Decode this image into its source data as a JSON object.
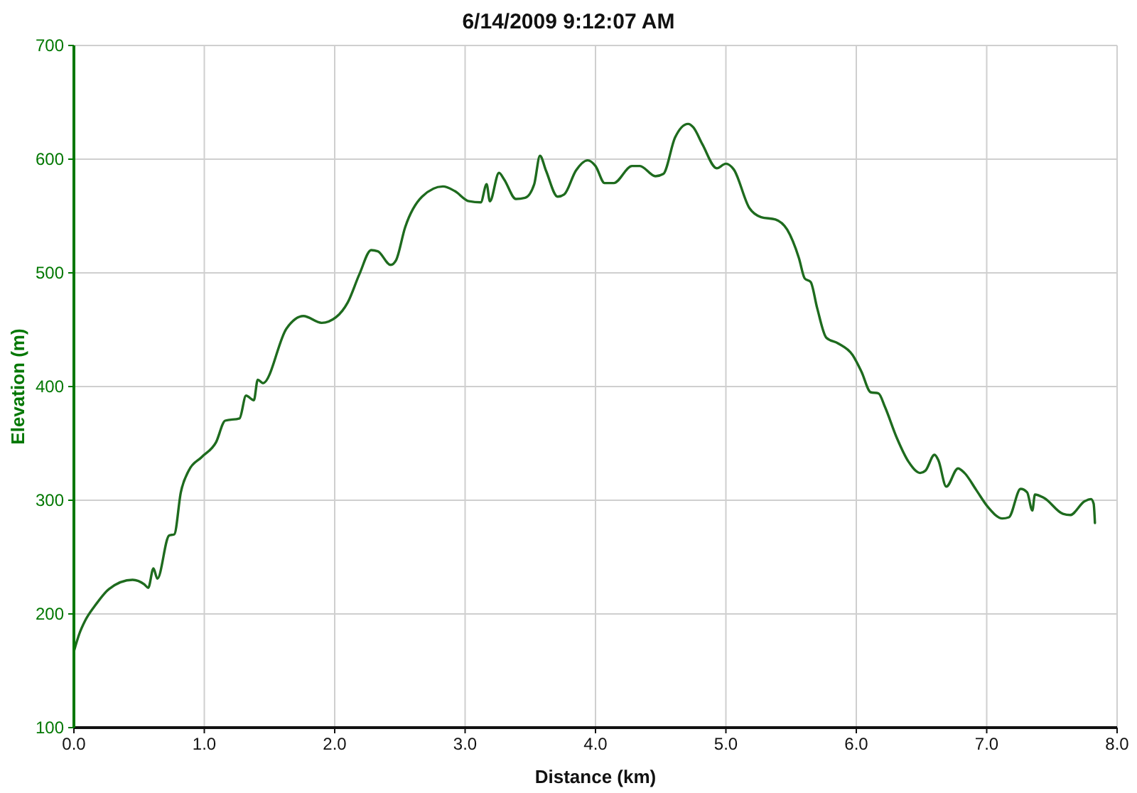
{
  "chart_data": {
    "type": "line",
    "title": "6/14/2009 9:12:07 AM",
    "xlabel": "Distance (km)",
    "ylabel": "Elevation (m)",
    "x": [
      0,
      0.04,
      0.086,
      0.16,
      0.27,
      0.45,
      0.54,
      0.57,
      0.61,
      0.64,
      0.73,
      0.77,
      0.82,
      0.88,
      0.98,
      1.09,
      1.16,
      1.27,
      1.32,
      1.38,
      1.41,
      1.45,
      1.63,
      1.76,
      1.9,
      2.01,
      2.1,
      2.19,
      2.28,
      2.33,
      2.43,
      2.47,
      2.54,
      2.67,
      2.83,
      2.92,
      3.03,
      3.12,
      3.165,
      3.19,
      3.26,
      3.3,
      3.39,
      3.46,
      3.53,
      3.574,
      3.62,
      3.71,
      3.76,
      3.85,
      3.94,
      4,
      4.07,
      4.14,
      4.28,
      4.34,
      4.46,
      4.52,
      4.61,
      4.71,
      4.75,
      4.82,
      4.93,
      5,
      5.06,
      5.18,
      5.27,
      5.38,
      5.47,
      5.56,
      5.605,
      5.65,
      5.7,
      5.77,
      5.86,
      5.97,
      6.04,
      6.11,
      6.17,
      6.22,
      6.31,
      6.4,
      6.49,
      6.53,
      6.6,
      6.63,
      6.69,
      6.78,
      6.83,
      6.92,
      7.01,
      7.12,
      7.17,
      7.26,
      7.31,
      7.35,
      7.37,
      7.44,
      7.585,
      7.64,
      7.75,
      7.8,
      7.82,
      7.83
    ],
    "series": [
      {
        "color": "#1e6b1e",
        "values": [
          167,
          182,
          194,
          207,
          222,
          230,
          226,
          223,
          240,
          231,
          269,
          270,
          307,
          326,
          338,
          351,
          370,
          372,
          392,
          388,
          406,
          403,
          451,
          462,
          456,
          461,
          474,
          499,
          520,
          519,
          507,
          511,
          540,
          567,
          576,
          572,
          563,
          562,
          578,
          563,
          588,
          582,
          565,
          566,
          578,
          603,
          590,
          567,
          569,
          590,
          599,
          594,
          579,
          579,
          594,
          594,
          585,
          587,
          619,
          631,
          628,
          613,
          592,
          596,
          591,
          557,
          549,
          547,
          538,
          513,
          495,
          492,
          469,
          443,
          438,
          428,
          413,
          395,
          394,
          382,
          355,
          334,
          324,
          326,
          340,
          335,
          312,
          328,
          324,
          309,
          294,
          284,
          285,
          310,
          307,
          291,
          305,
          302,
          288,
          287,
          299,
          301,
          297,
          280
        ]
      }
    ],
    "xlim": [
      0,
      8
    ],
    "xticks": [
      {
        "value": 0,
        "label": "0.0"
      },
      {
        "value": 1,
        "label": "1.0"
      },
      {
        "value": 2,
        "label": "2.0"
      },
      {
        "value": 3,
        "label": "3.0"
      },
      {
        "value": 4,
        "label": "4.0"
      },
      {
        "value": 5,
        "label": "5.0"
      },
      {
        "value": 6,
        "label": "6.0"
      },
      {
        "value": 7,
        "label": "7.0"
      },
      {
        "value": 8,
        "label": "8.0"
      }
    ],
    "ylim": [
      100,
      700
    ],
    "yticks": [
      100,
      200,
      300,
      400,
      500,
      600,
      700
    ],
    "grid": true,
    "marker": "none",
    "line_style": "solid"
  }
}
